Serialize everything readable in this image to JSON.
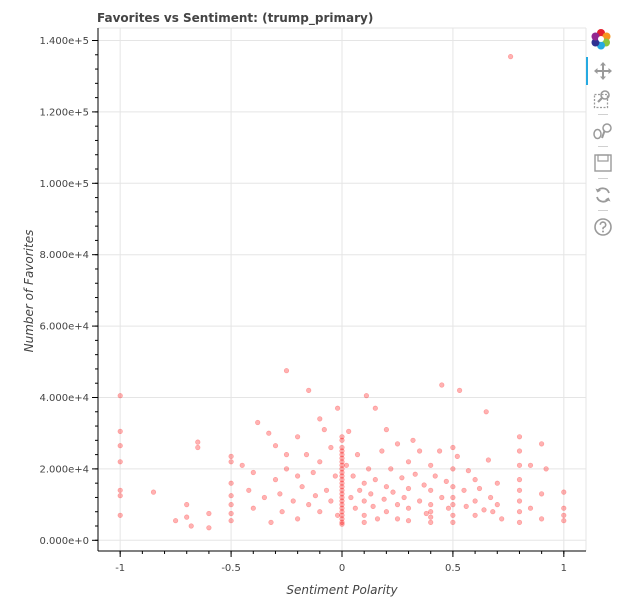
{
  "chart_data": {
    "type": "scatter",
    "title": "Favorites vs Sentiment: (trump_primary)",
    "xlabel": "Sentiment Polarity",
    "ylabel": "Number of Favorites",
    "xlim": [
      -1.1,
      1.1
    ],
    "ylim": [
      -3000,
      143500
    ],
    "x_ticks": [
      -1,
      -0.5,
      0,
      0.5,
      1
    ],
    "x_tick_labels": [
      "-1",
      "-0.5",
      "0",
      "0.5",
      "1"
    ],
    "y_ticks": [
      0,
      20000,
      40000,
      60000,
      80000,
      100000,
      120000,
      140000
    ],
    "y_tick_labels": [
      "0.000e+0",
      "2.000e+4",
      "4.000e+4",
      "6.000e+4",
      "8.000e+4",
      "1.000e+5",
      "1.200e+5",
      "1.400e+5"
    ],
    "grid": true,
    "marker_color": "#ff0000",
    "marker_alpha": 0.3,
    "series": [
      {
        "points": [
          [
            -1,
            40500
          ],
          [
            -1,
            30500
          ],
          [
            -1,
            26500
          ],
          [
            -1,
            22000
          ],
          [
            -1,
            14000
          ],
          [
            -1,
            12500
          ],
          [
            -1,
            7000
          ],
          [
            -0.85,
            13500
          ],
          [
            -0.75,
            5500
          ],
          [
            -0.7,
            10000
          ],
          [
            -0.7,
            6500
          ],
          [
            -0.68,
            4000
          ],
          [
            -0.65,
            27500
          ],
          [
            -0.65,
            26000
          ],
          [
            -0.6,
            7500
          ],
          [
            -0.6,
            3500
          ],
          [
            -0.5,
            23500
          ],
          [
            -0.5,
            22000
          ],
          [
            -0.5,
            16000
          ],
          [
            -0.5,
            12500
          ],
          [
            -0.5,
            10000
          ],
          [
            -0.5,
            7500
          ],
          [
            -0.5,
            5500
          ],
          [
            -0.45,
            21000
          ],
          [
            -0.42,
            14000
          ],
          [
            -0.4,
            19000
          ],
          [
            -0.4,
            9000
          ],
          [
            -0.38,
            33000
          ],
          [
            -0.35,
            12000
          ],
          [
            -0.33,
            30000
          ],
          [
            -0.32,
            5000
          ],
          [
            -0.3,
            26500
          ],
          [
            -0.3,
            17000
          ],
          [
            -0.28,
            13000
          ],
          [
            -0.27,
            8000
          ],
          [
            -0.25,
            47500
          ],
          [
            -0.25,
            24000
          ],
          [
            -0.25,
            20000
          ],
          [
            -0.22,
            11000
          ],
          [
            -0.2,
            29000
          ],
          [
            -0.2,
            18000
          ],
          [
            -0.2,
            6000
          ],
          [
            -0.18,
            15000
          ],
          [
            -0.16,
            24000
          ],
          [
            -0.15,
            42000
          ],
          [
            -0.15,
            10000
          ],
          [
            -0.13,
            19000
          ],
          [
            -0.12,
            12500
          ],
          [
            -0.1,
            34000
          ],
          [
            -0.1,
            22000
          ],
          [
            -0.1,
            8000
          ],
          [
            -0.08,
            31000
          ],
          [
            -0.07,
            14000
          ],
          [
            -0.05,
            26000
          ],
          [
            -0.05,
            11000
          ],
          [
            -0.03,
            18000
          ],
          [
            -0.02,
            37000
          ],
          [
            -0.02,
            7000
          ],
          [
            0,
            29000
          ],
          [
            0,
            28000
          ],
          [
            0,
            26000
          ],
          [
            0,
            25000
          ],
          [
            0,
            24000
          ],
          [
            0,
            23000
          ],
          [
            0,
            22000
          ],
          [
            0,
            21000
          ],
          [
            0,
            20000
          ],
          [
            0,
            19000
          ],
          [
            0,
            18000
          ],
          [
            0,
            17000
          ],
          [
            0,
            16000
          ],
          [
            0,
            15000
          ],
          [
            0,
            14000
          ],
          [
            0,
            13000
          ],
          [
            0,
            12000
          ],
          [
            0,
            11000
          ],
          [
            0,
            10000
          ],
          [
            0,
            9000
          ],
          [
            0,
            8000
          ],
          [
            0,
            7000
          ],
          [
            0,
            6000
          ],
          [
            0,
            5000
          ],
          [
            0,
            4500
          ],
          [
            0.02,
            21000
          ],
          [
            0.03,
            30500
          ],
          [
            0.04,
            12000
          ],
          [
            0.05,
            18000
          ],
          [
            0.06,
            9000
          ],
          [
            0.07,
            24000
          ],
          [
            0.08,
            14000
          ],
          [
            0.1,
            16000
          ],
          [
            0.1,
            11000
          ],
          [
            0.1,
            7000
          ],
          [
            0.1,
            5000
          ],
          [
            0.11,
            40500
          ],
          [
            0.12,
            20000
          ],
          [
            0.13,
            13000
          ],
          [
            0.14,
            9500
          ],
          [
            0.15,
            37000
          ],
          [
            0.15,
            17000
          ],
          [
            0.16,
            6000
          ],
          [
            0.18,
            25000
          ],
          [
            0.19,
            11500
          ],
          [
            0.2,
            31000
          ],
          [
            0.2,
            15000
          ],
          [
            0.2,
            8000
          ],
          [
            0.22,
            20000
          ],
          [
            0.23,
            13500
          ],
          [
            0.25,
            27000
          ],
          [
            0.25,
            10000
          ],
          [
            0.25,
            6000
          ],
          [
            0.27,
            17500
          ],
          [
            0.28,
            12000
          ],
          [
            0.3,
            22000
          ],
          [
            0.3,
            14500
          ],
          [
            0.3,
            9000
          ],
          [
            0.3,
            5500
          ],
          [
            0.32,
            28000
          ],
          [
            0.33,
            18500
          ],
          [
            0.35,
            25000
          ],
          [
            0.35,
            11000
          ],
          [
            0.37,
            15500
          ],
          [
            0.38,
            7500
          ],
          [
            0.4,
            21000
          ],
          [
            0.4,
            14000
          ],
          [
            0.4,
            10000
          ],
          [
            0.4,
            8000
          ],
          [
            0.4,
            6500
          ],
          [
            0.4,
            5000
          ],
          [
            0.42,
            18000
          ],
          [
            0.44,
            25000
          ],
          [
            0.45,
            43500
          ],
          [
            0.45,
            12000
          ],
          [
            0.47,
            16500
          ],
          [
            0.48,
            9000
          ],
          [
            0.5,
            26000
          ],
          [
            0.5,
            20000
          ],
          [
            0.5,
            15000
          ],
          [
            0.5,
            12000
          ],
          [
            0.5,
            10000
          ],
          [
            0.5,
            7000
          ],
          [
            0.5,
            5000
          ],
          [
            0.52,
            23500
          ],
          [
            0.53,
            42000
          ],
          [
            0.55,
            14000
          ],
          [
            0.56,
            9500
          ],
          [
            0.57,
            19500
          ],
          [
            0.6,
            17000
          ],
          [
            0.6,
            11000
          ],
          [
            0.6,
            7000
          ],
          [
            0.62,
            14500
          ],
          [
            0.64,
            8500
          ],
          [
            0.65,
            36000
          ],
          [
            0.66,
            22500
          ],
          [
            0.67,
            12000
          ],
          [
            0.68,
            8000
          ],
          [
            0.7,
            16000
          ],
          [
            0.7,
            10000
          ],
          [
            0.72,
            6000
          ],
          [
            0.76,
            135500
          ],
          [
            0.8,
            29000
          ],
          [
            0.8,
            25000
          ],
          [
            0.8,
            21000
          ],
          [
            0.8,
            17000
          ],
          [
            0.8,
            14000
          ],
          [
            0.8,
            11000
          ],
          [
            0.8,
            8000
          ],
          [
            0.8,
            5000
          ],
          [
            0.85,
            21000
          ],
          [
            0.85,
            9000
          ],
          [
            0.9,
            27000
          ],
          [
            0.9,
            13000
          ],
          [
            0.9,
            6000
          ],
          [
            0.92,
            20000
          ],
          [
            1,
            13500
          ],
          [
            1,
            9000
          ],
          [
            1,
            7000
          ],
          [
            1,
            5500
          ]
        ]
      }
    ]
  },
  "toolbar": {
    "logo_icon": "bokeh-logo-icon",
    "tools": [
      "pan-tool-icon",
      "box-zoom-tool-icon",
      "wheel-zoom-tool-icon",
      "save-tool-icon",
      "reset-tool-icon",
      "help-tool-icon"
    ]
  }
}
